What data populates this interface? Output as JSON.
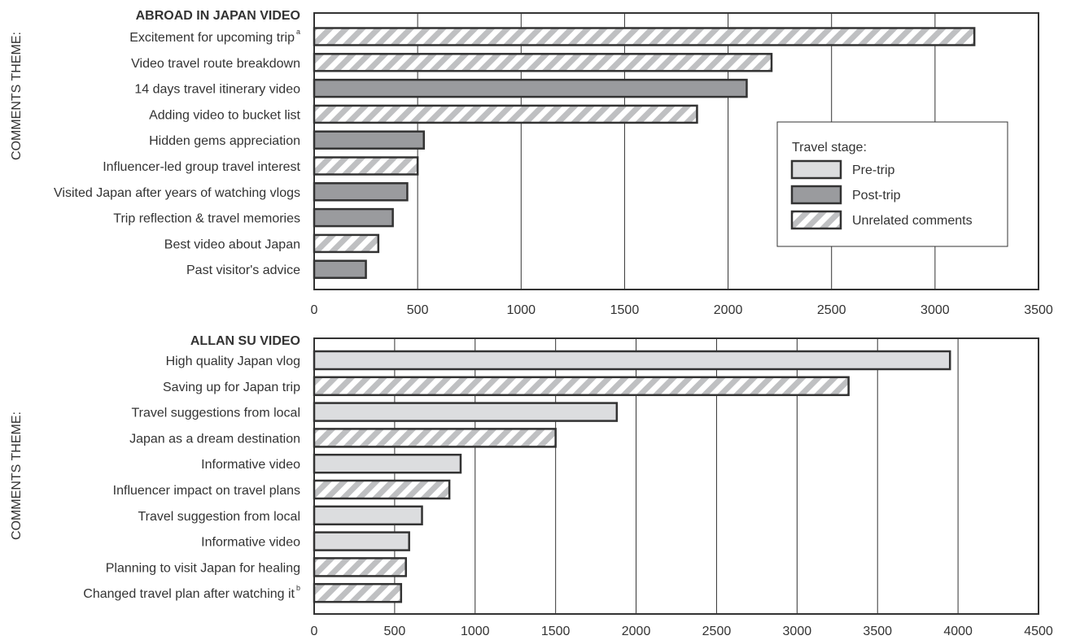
{
  "colors": {
    "pre_trip": "#dcdddf",
    "post_trip": "#9a9b9e",
    "stripe": "#bfc0c2",
    "bar_stroke": "#333333",
    "axis": "#333333",
    "text": "#333333"
  },
  "chart_data": [
    {
      "type": "bar",
      "orientation": "horizontal",
      "title": "ABROAD IN JAPAN VIDEO",
      "ylabel": "COMMENTS THEME:",
      "xlim": [
        0,
        3500
      ],
      "xticks": [
        0,
        500,
        1000,
        1500,
        2000,
        2500,
        3000,
        3500
      ],
      "grid": true,
      "legend": {
        "title": "Travel stage:",
        "placement": "right",
        "entries": [
          {
            "label": "Pre-trip",
            "style": "pre"
          },
          {
            "label": "Post-trip",
            "style": "post"
          },
          {
            "label": "Unrelated comments",
            "style": "unrelated"
          }
        ]
      },
      "bars": [
        {
          "label": "Excitement for upcoming trip",
          "sup": "a",
          "value": 3190,
          "stage": "unrelated"
        },
        {
          "label": "Video travel route breakdown",
          "value": 2210,
          "stage": "unrelated"
        },
        {
          "label": "14 days travel itinerary video",
          "value": 2090,
          "stage": "post"
        },
        {
          "label": "Adding video to bucket list",
          "value": 1850,
          "stage": "unrelated"
        },
        {
          "label": "Hidden gems appreciation",
          "value": 530,
          "stage": "post"
        },
        {
          "label": "Influencer-led group travel interest",
          "value": 500,
          "stage": "unrelated"
        },
        {
          "label": "Visited Japan after years of watching vlogs",
          "value": 450,
          "stage": "post"
        },
        {
          "label": "Trip reflection & travel memories",
          "value": 380,
          "stage": "post"
        },
        {
          "label": "Best video about Japan",
          "value": 310,
          "stage": "unrelated"
        },
        {
          "label": "Past visitor's advice",
          "value": 250,
          "stage": "post"
        }
      ]
    },
    {
      "type": "bar",
      "orientation": "horizontal",
      "title": "ALLAN SU VIDEO",
      "ylabel": "COMMENTS THEME:",
      "xlim": [
        0,
        4500
      ],
      "xticks": [
        0,
        500,
        1000,
        1500,
        2000,
        2500,
        3000,
        3500,
        4000,
        4500
      ],
      "grid": true,
      "bars": [
        {
          "label": "High quality Japan vlog",
          "value": 3950,
          "stage": "pre"
        },
        {
          "label": "Saving up for Japan trip",
          "value": 3320,
          "stage": "unrelated"
        },
        {
          "label": "Travel suggestions from local",
          "value": 1880,
          "stage": "pre"
        },
        {
          "label": "Japan as a dream destination",
          "value": 1500,
          "stage": "unrelated"
        },
        {
          "label": "Informative video",
          "value": 910,
          "stage": "pre"
        },
        {
          "label": "Influencer impact on travel plans",
          "value": 840,
          "stage": "unrelated"
        },
        {
          "label": "Travel suggestion from local",
          "value": 670,
          "stage": "pre"
        },
        {
          "label": "Informative video",
          "value": 590,
          "stage": "pre"
        },
        {
          "label": "Planning to visit Japan for healing",
          "value": 570,
          "stage": "unrelated"
        },
        {
          "label": "Changed travel plan after watching it",
          "sup": "b",
          "value": 540,
          "stage": "unrelated"
        }
      ]
    }
  ]
}
